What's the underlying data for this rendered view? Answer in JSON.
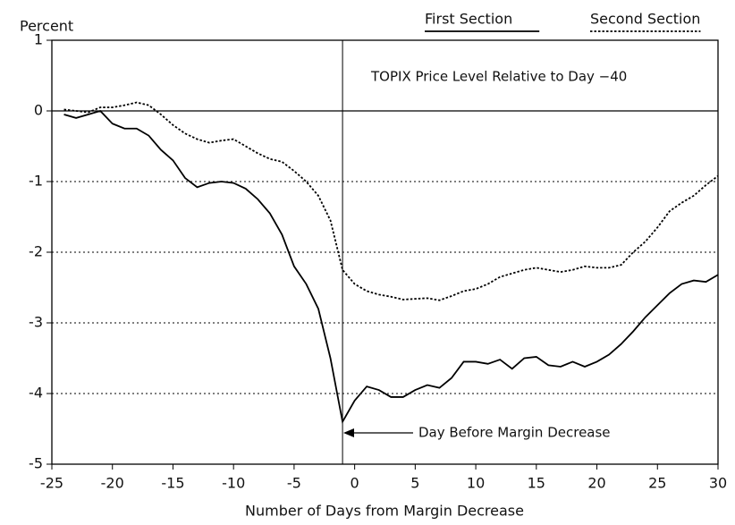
{
  "chart_data": {
    "type": "line",
    "ylabel": "Percent",
    "xlabel": "Number of Days from Margin Decrease",
    "annotation": "TOPIX Price Level Relative to Day −40",
    "vline_label": "Day Before Margin Decrease",
    "vline": -1,
    "x": [
      -24,
      -23,
      -22,
      -21,
      -20,
      -19,
      -18,
      -17,
      -16,
      -15,
      -14,
      -13,
      -12,
      -11,
      -10,
      -9,
      -8,
      -7,
      -6,
      -5,
      -4,
      -3,
      -2,
      -1,
      0,
      1,
      2,
      3,
      4,
      5,
      6,
      7,
      8,
      9,
      10,
      11,
      12,
      13,
      14,
      15,
      16,
      17,
      18,
      19,
      20,
      21,
      22,
      23,
      24,
      25,
      26,
      27,
      28,
      29,
      30
    ],
    "series": [
      {
        "name": "First Section",
        "color": "#000000",
        "dash": "solid",
        "values": [
          -0.05,
          -0.1,
          -0.05,
          0.0,
          -0.18,
          -0.25,
          -0.25,
          -0.35,
          -0.55,
          -0.7,
          -0.95,
          -1.08,
          -1.02,
          -1.0,
          -1.02,
          -1.1,
          -1.25,
          -1.45,
          -1.75,
          -2.2,
          -2.45,
          -2.8,
          -3.5,
          -4.4,
          -4.1,
          -3.9,
          -3.95,
          -4.05,
          -4.05,
          -3.95,
          -3.88,
          -3.92,
          -3.78,
          -3.55,
          -3.55,
          -3.58,
          -3.52,
          -3.65,
          -3.5,
          -3.48,
          -3.6,
          -3.62,
          -3.55,
          -3.62,
          -3.55,
          -3.45,
          -3.3,
          -3.12,
          -2.92,
          -2.75,
          -2.58,
          -2.45,
          -2.4,
          -2.42,
          -2.32
        ]
      },
      {
        "name": "Second Section",
        "color": "#000000",
        "dash": "dotted",
        "values": [
          0.02,
          0.0,
          -0.02,
          0.05,
          0.05,
          0.08,
          0.12,
          0.08,
          -0.05,
          -0.2,
          -0.32,
          -0.4,
          -0.45,
          -0.42,
          -0.4,
          -0.5,
          -0.6,
          -0.68,
          -0.72,
          -0.85,
          -1.0,
          -1.2,
          -1.55,
          -2.25,
          -2.45,
          -2.55,
          -2.6,
          -2.63,
          -2.67,
          -2.66,
          -2.65,
          -2.68,
          -2.62,
          -2.55,
          -2.52,
          -2.45,
          -2.35,
          -2.3,
          -2.25,
          -2.22,
          -2.25,
          -2.28,
          -2.25,
          -2.2,
          -2.22,
          -2.22,
          -2.18,
          -2.0,
          -1.85,
          -1.65,
          -1.42,
          -1.3,
          -1.2,
          -1.05,
          -0.92
        ]
      }
    ],
    "xlim": [
      -25,
      30
    ],
    "xticks": [
      -25,
      -20,
      -15,
      -10,
      -5,
      0,
      5,
      10,
      15,
      20,
      25,
      30
    ],
    "ylim": [
      -5,
      1
    ],
    "yticks": [
      -5,
      -4,
      -3,
      -2,
      -1,
      0,
      1
    ],
    "grid": true
  }
}
